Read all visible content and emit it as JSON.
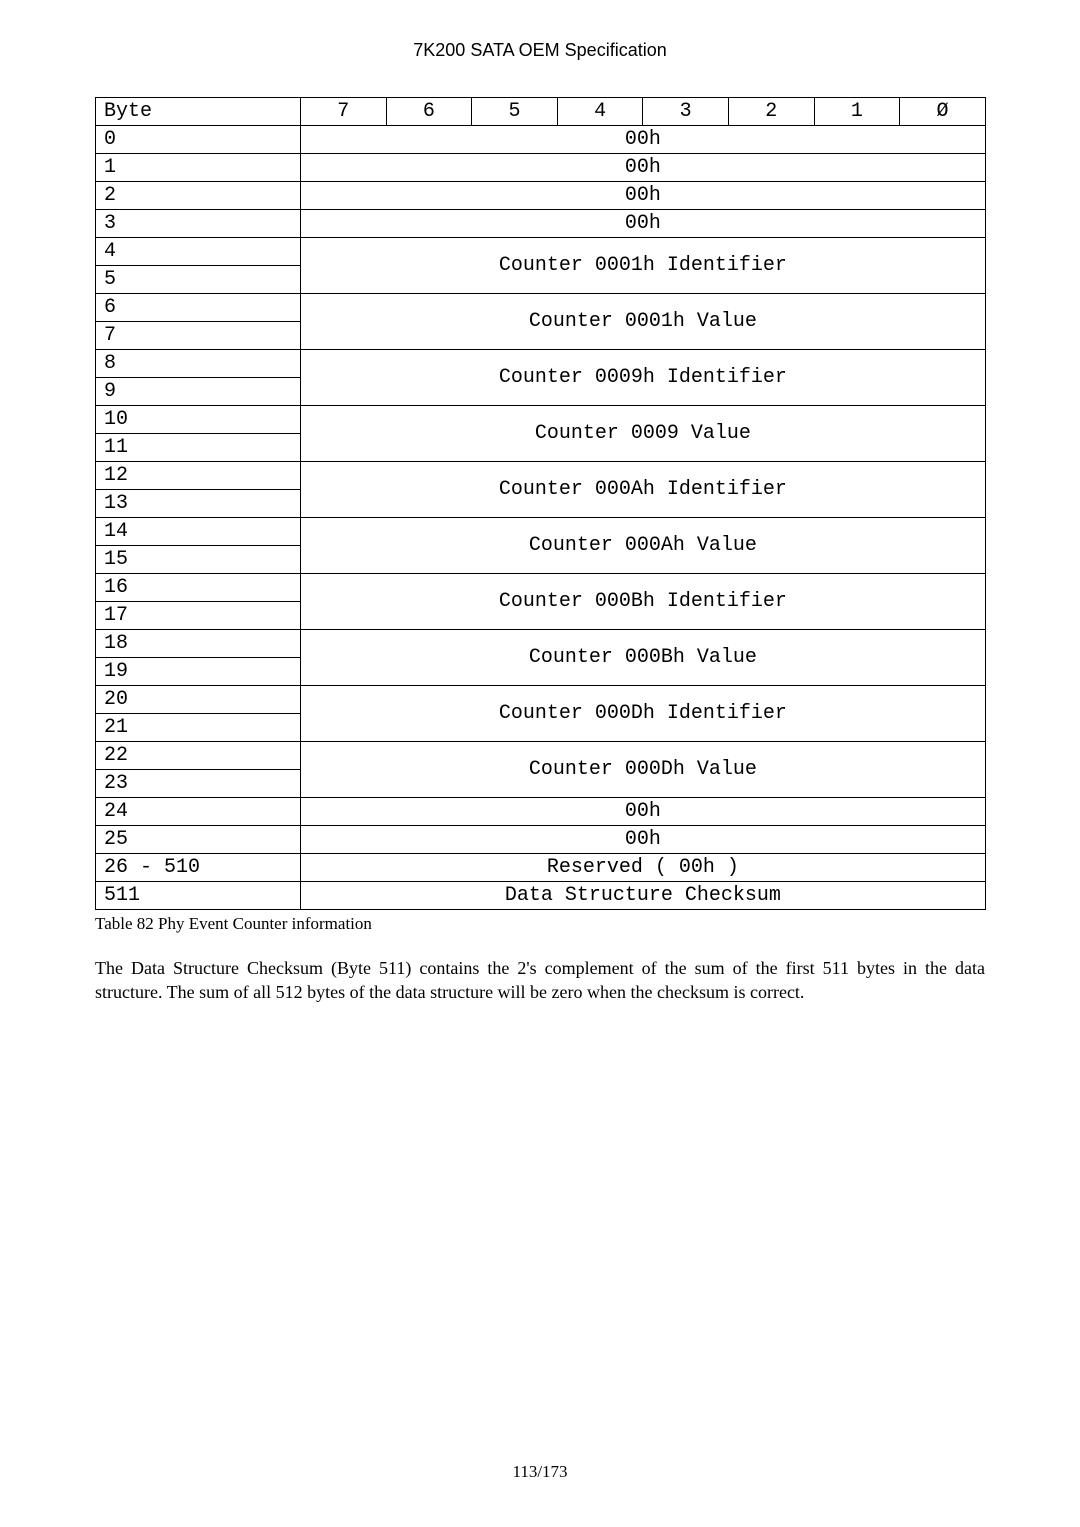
{
  "doc_title": "7K200 SATA OEM Specification",
  "header": {
    "byte_label": "Byte",
    "bits": [
      "7",
      "6",
      "5",
      "4",
      "3",
      "2",
      "1",
      "Ø"
    ]
  },
  "rows": [
    {
      "label": "0",
      "value": "00h",
      "span": 1
    },
    {
      "label": "1",
      "value": "00h",
      "span": 1
    },
    {
      "label": "2",
      "value": "00h",
      "span": 1
    },
    {
      "label": "3",
      "value": "00h",
      "span": 1
    },
    {
      "label": "4",
      "label2": "5",
      "value": "Counter 0001h Identifier",
      "span": 2
    },
    {
      "label": "6",
      "label2": "7",
      "value": "Counter 0001h Value",
      "span": 2
    },
    {
      "label": "8",
      "label2": "9",
      "value": "Counter 0009h Identifier",
      "span": 2
    },
    {
      "label": "10",
      "label2": "11",
      "value": "Counter 0009 Value",
      "span": 2
    },
    {
      "label": "12",
      "label2": "13",
      "value": "Counter 000Ah Identifier",
      "span": 2
    },
    {
      "label": "14",
      "label2": "15",
      "value": "Counter 000Ah Value",
      "span": 2
    },
    {
      "label": "16",
      "label2": "17",
      "value": "Counter 000Bh Identifier",
      "span": 2
    },
    {
      "label": "18",
      "label2": "19",
      "value": "Counter 000Bh Value",
      "span": 2
    },
    {
      "label": "20",
      "label2": "21",
      "value": "Counter 000Dh Identifier",
      "span": 2
    },
    {
      "label": "22",
      "label2": "23",
      "value": "Counter 000Dh Value",
      "span": 2
    },
    {
      "label": "24",
      "value": "00h",
      "span": 1
    },
    {
      "label": "25",
      "value": "00h",
      "span": 1
    },
    {
      "label": "26 - 510",
      "value": "Reserved ( 00h )",
      "span": 1
    },
    {
      "label": "511",
      "value": "Data Structure Checksum",
      "span": 1
    }
  ],
  "caption": "Table 82 Phy Event Counter information",
  "body_text": "The Data Structure Checksum (Byte 511) contains the 2's complement of the sum of the first 511 bytes in the data structure.   The sum of all 512 bytes of the data structure will be zero when the checksum is correct.",
  "page_number": "113/173"
}
